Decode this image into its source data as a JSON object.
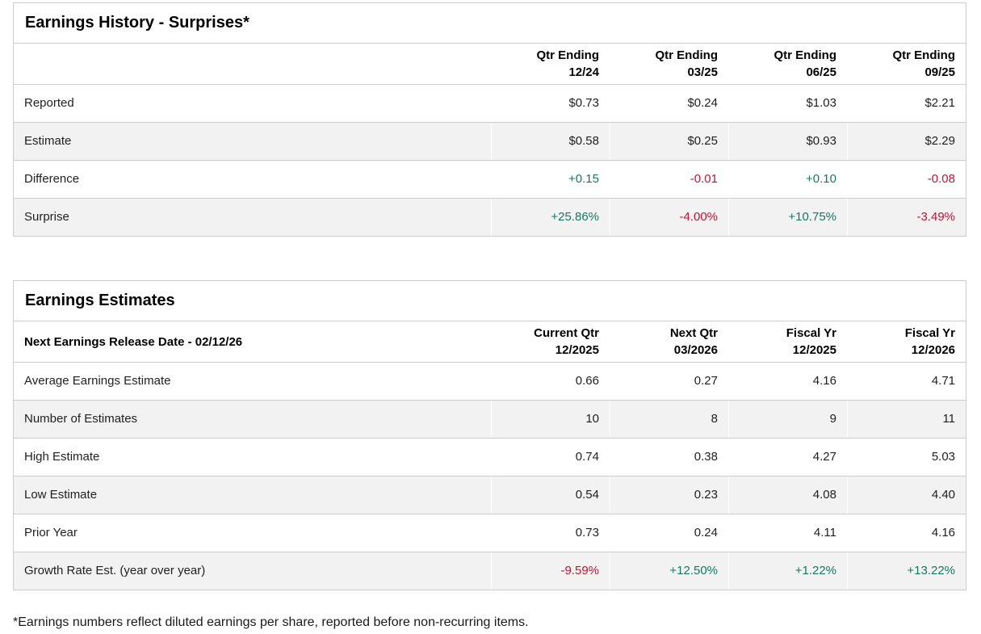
{
  "colors": {
    "positive_text": "#15795f",
    "negative_text": "#c41230",
    "zebra_row_bg": "#f2f2f2",
    "table_border": "#cccccc"
  },
  "earnings_history": {
    "title": "Earnings History - Surprises*",
    "columns": [
      {
        "line1": "Qtr Ending",
        "line2": "12/24"
      },
      {
        "line1": "Qtr Ending",
        "line2": "03/25"
      },
      {
        "line1": "Qtr Ending",
        "line2": "06/25"
      },
      {
        "line1": "Qtr Ending",
        "line2": "09/25"
      }
    ],
    "rows": [
      {
        "label": "Reported",
        "values": [
          {
            "text": "$0.73"
          },
          {
            "text": "$0.24"
          },
          {
            "text": "$1.03"
          },
          {
            "text": "$2.21"
          }
        ]
      },
      {
        "label": "Estimate",
        "values": [
          {
            "text": "$0.58"
          },
          {
            "text": "$0.25"
          },
          {
            "text": "$0.93"
          },
          {
            "text": "$2.29"
          }
        ]
      },
      {
        "label": "Difference",
        "values": [
          {
            "text": "+0.15",
            "tone": "pos"
          },
          {
            "text": "-0.01",
            "tone": "neg"
          },
          {
            "text": "+0.10",
            "tone": "pos"
          },
          {
            "text": "-0.08",
            "tone": "neg"
          }
        ]
      },
      {
        "label": "Surprise",
        "values": [
          {
            "text": "+25.86%",
            "tone": "pos"
          },
          {
            "text": "-4.00%",
            "tone": "neg"
          },
          {
            "text": "+10.75%",
            "tone": "pos"
          },
          {
            "text": "-3.49%",
            "tone": "neg"
          }
        ]
      }
    ]
  },
  "earnings_estimates": {
    "title": "Earnings Estimates",
    "release_date_label": "Next Earnings Release Date - 02/12/26",
    "columns": [
      {
        "line1": "Current Qtr",
        "line2": "12/2025"
      },
      {
        "line1": "Next Qtr",
        "line2": "03/2026"
      },
      {
        "line1": "Fiscal Yr",
        "line2": "12/2025"
      },
      {
        "line1": "Fiscal Yr",
        "line2": "12/2026"
      }
    ],
    "rows": [
      {
        "label": "Average Earnings Estimate",
        "values": [
          {
            "text": "0.66"
          },
          {
            "text": "0.27"
          },
          {
            "text": "4.16"
          },
          {
            "text": "4.71"
          }
        ]
      },
      {
        "label": "Number of Estimates",
        "values": [
          {
            "text": "10"
          },
          {
            "text": "8"
          },
          {
            "text": "9"
          },
          {
            "text": "11"
          }
        ]
      },
      {
        "label": "High Estimate",
        "values": [
          {
            "text": "0.74"
          },
          {
            "text": "0.38"
          },
          {
            "text": "4.27"
          },
          {
            "text": "5.03"
          }
        ]
      },
      {
        "label": "Low Estimate",
        "values": [
          {
            "text": "0.54"
          },
          {
            "text": "0.23"
          },
          {
            "text": "4.08"
          },
          {
            "text": "4.40"
          }
        ]
      },
      {
        "label": "Prior Year",
        "values": [
          {
            "text": "0.73"
          },
          {
            "text": "0.24"
          },
          {
            "text": "4.11"
          },
          {
            "text": "4.16"
          }
        ]
      },
      {
        "label": "Growth Rate Est. (year over year)",
        "values": [
          {
            "text": "-9.59%",
            "tone": "neg"
          },
          {
            "text": "+12.50%",
            "tone": "pos"
          },
          {
            "text": "+1.22%",
            "tone": "pos"
          },
          {
            "text": "+13.22%",
            "tone": "pos"
          }
        ]
      }
    ]
  },
  "footnote": "*Earnings numbers reflect diluted earnings per share, reported before non-recurring items."
}
